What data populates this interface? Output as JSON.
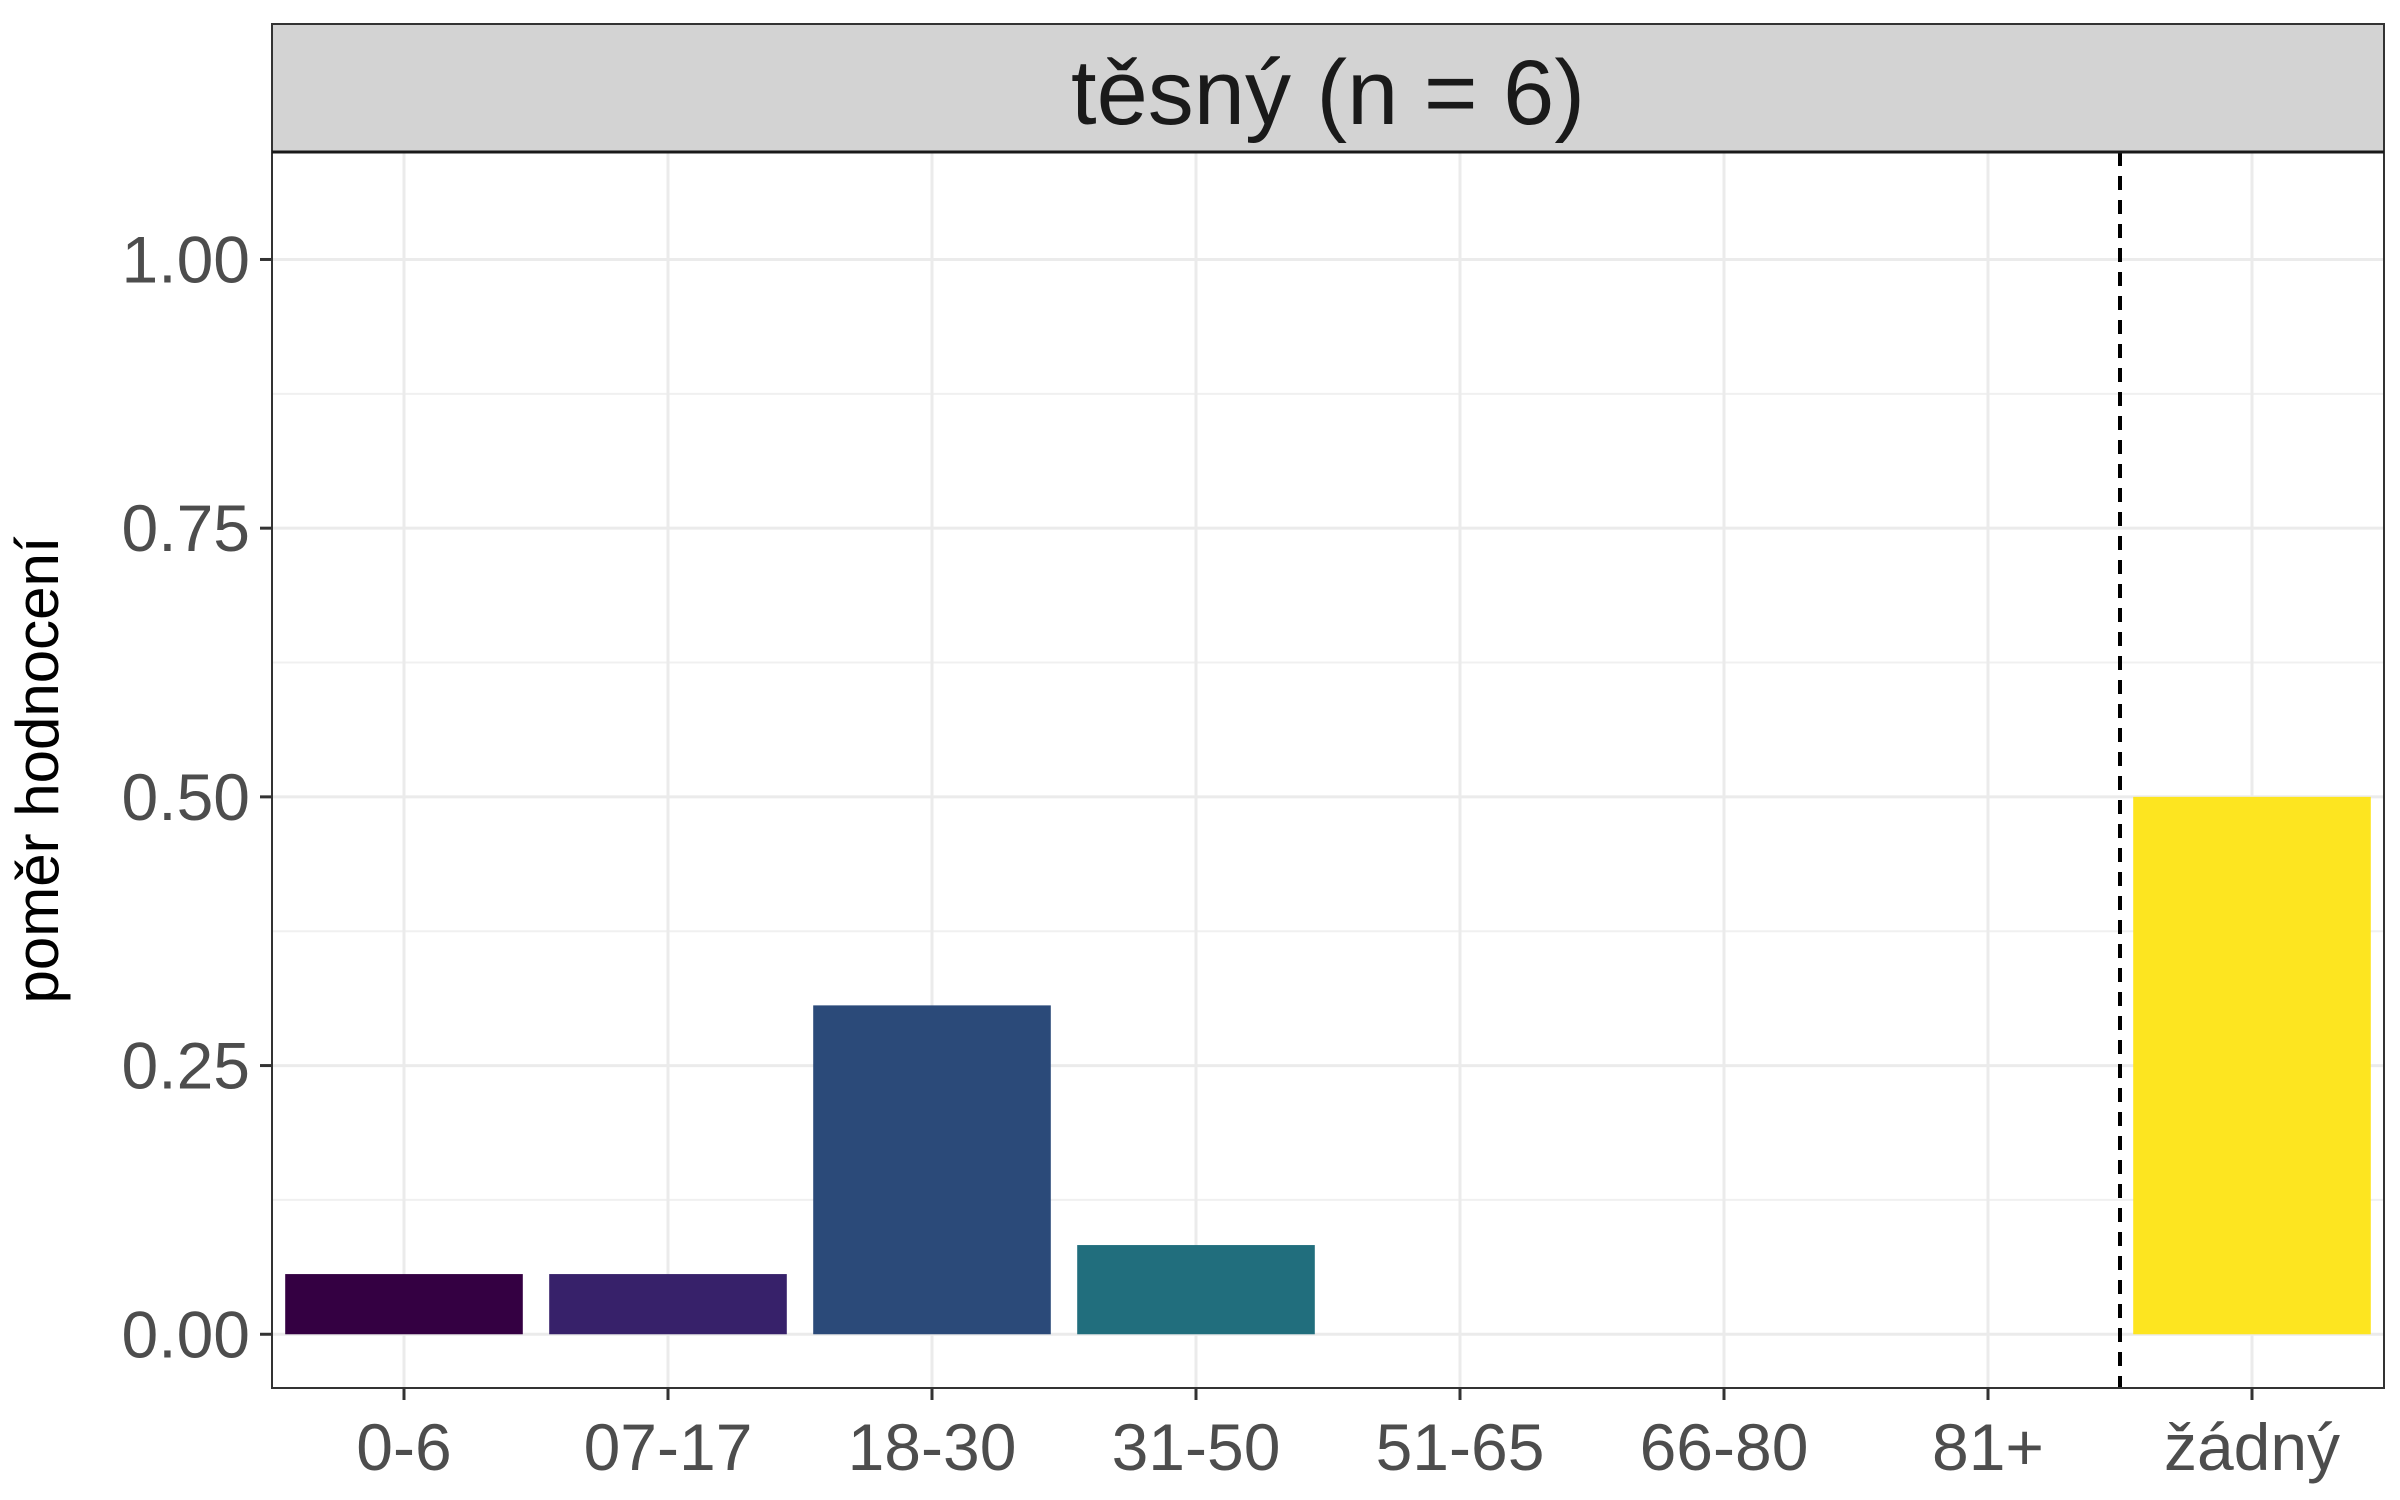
{
  "chart_data": {
    "type": "bar",
    "facet_title": "těsný (n = 6)",
    "categories": [
      "0-6",
      "07-17",
      "18-30",
      "31-50",
      "51-65",
      "66-80",
      "81+",
      "žádný"
    ],
    "values": [
      0.056,
      0.056,
      0.306,
      0.083,
      0,
      0,
      0,
      0.5
    ],
    "colors": [
      "#340042",
      "#37216a",
      "#2b4a79",
      "#216e7d",
      "#1f8f87",
      "#30ae78",
      "#7fcc4c",
      "#fde520"
    ],
    "xlabel": "",
    "ylabel": "poměr hodnocení",
    "ylim": [
      -0.05,
      1.1
    ],
    "yticks": [
      0,
      0.25,
      0.5,
      0.75,
      1.0
    ],
    "ytick_labels": [
      "0.00",
      "0.25",
      "0.50",
      "0.75",
      "1.00"
    ],
    "reference_line": {
      "between": [
        "81+",
        "žádný"
      ],
      "style": "dashed",
      "color": "#000000"
    },
    "grid": true,
    "legend": "none",
    "theme": "bw"
  }
}
